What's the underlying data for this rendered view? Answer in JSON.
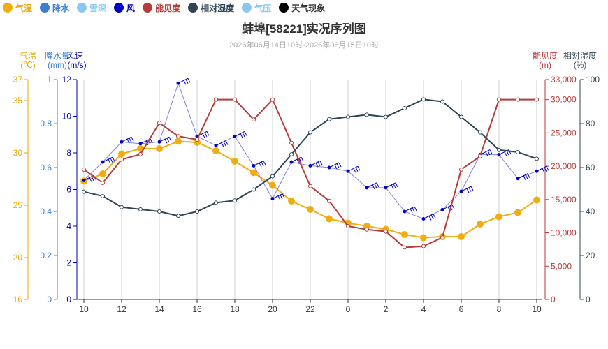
{
  "legend": [
    {
      "label": "气温",
      "color": "#f0ad12"
    },
    {
      "label": "降水",
      "color": "#3a7fd0"
    },
    {
      "label": "雪深",
      "color": "#8ac8f0"
    },
    {
      "label": "风",
      "color": "#0000cc"
    },
    {
      "label": "能见度",
      "color": "#b83a3a"
    },
    {
      "label": "相对湿度",
      "color": "#2f4554"
    },
    {
      "label": "气压",
      "color": "#8ac8f0"
    },
    {
      "label": "天气现象",
      "color": "#000000"
    }
  ],
  "chart_data": {
    "type": "line",
    "title": "蚌埠[58221]实况序列图",
    "subtitle": "2026年06月14日10时-2026年06月15日10时",
    "x": [
      "10",
      "11",
      "12",
      "13",
      "14",
      "15",
      "16",
      "17",
      "18",
      "19",
      "20",
      "21",
      "22",
      "23",
      "0",
      "1",
      "2",
      "3",
      "4",
      "5",
      "6",
      "7",
      "8",
      "9",
      "10"
    ],
    "x_ticks": [
      "10",
      "12",
      "14",
      "16",
      "18",
      "20",
      "22",
      "0",
      "2",
      "4",
      "6",
      "8",
      "10"
    ],
    "axes": {
      "temperature": {
        "label": "气温",
        "unit": "(℃)",
        "range": [
          16,
          37
        ],
        "ticks": [
          16,
          20,
          25,
          30,
          35,
          37
        ],
        "color": "#e8a800"
      },
      "precipitation": {
        "label": "降水量",
        "unit": "(mm)",
        "range": [
          0,
          1
        ],
        "ticks": [
          0,
          0.2,
          0.4,
          0.6,
          0.8,
          1
        ],
        "color": "#3a7fd0"
      },
      "wind_speed": {
        "label": "风速",
        "unit": "(m/s)",
        "range": [
          0,
          12
        ],
        "ticks": [
          0,
          2,
          4,
          6,
          8,
          10,
          12
        ],
        "color": "#0000aa"
      },
      "visibility": {
        "label": "能见度",
        "unit": "(m)",
        "range": [
          0,
          33000
        ],
        "ticks": [
          0,
          5000,
          10000,
          15000,
          20000,
          25000,
          30000,
          33000
        ],
        "tick_labels": [
          "0",
          "5,000",
          "10,000",
          "15,000",
          "20,000",
          "25,000",
          "30,000",
          "33,000"
        ],
        "color": "#b83a3a"
      },
      "humidity": {
        "label": "相对湿度",
        "unit": "(%)",
        "range": [
          0,
          100
        ],
        "ticks": [
          0,
          20,
          40,
          60,
          80,
          100
        ],
        "color": "#2f4554"
      }
    },
    "series": [
      {
        "name": "气温",
        "axis": "temperature",
        "color": "#f0ad12",
        "values": [
          27.3,
          28.0,
          29.9,
          30.4,
          30.4,
          31.1,
          31.0,
          30.2,
          29.2,
          28.1,
          26.9,
          25.4,
          24.6,
          23.7,
          23.3,
          23.0,
          22.7,
          22.2,
          21.9,
          22.0,
          22.0,
          23.2,
          23.9,
          24.3,
          25.5
        ]
      },
      {
        "name": "风",
        "axis": "wind_speed",
        "color": "#0000cc",
        "values": [
          6.5,
          7.5,
          8.6,
          8.5,
          8.6,
          11.8,
          8.9,
          8.4,
          8.9,
          7.3,
          5.5,
          7.5,
          7.3,
          7.2,
          7.0,
          6.1,
          6.1,
          4.8,
          4.4,
          4.9,
          5.9,
          7.9,
          7.9,
          6.6,
          7.0
        ]
      },
      {
        "name": "能见度",
        "axis": "visibility",
        "color": "#b83a3a",
        "values": [
          19500,
          17500,
          21000,
          21800,
          26500,
          24500,
          24000,
          30000,
          30000,
          27000,
          30000,
          23500,
          17000,
          14800,
          11000,
          10500,
          10200,
          7800,
          8000,
          9300,
          19500,
          21500,
          30000,
          30000,
          30000
        ]
      },
      {
        "name": "相对湿度",
        "axis": "humidity",
        "color": "#2f4554",
        "values": [
          49,
          47,
          42,
          41,
          40,
          38,
          40,
          44,
          45,
          50,
          56,
          66,
          76,
          82,
          83,
          84,
          83,
          87,
          91,
          90,
          83,
          76,
          68,
          67,
          64
        ]
      }
    ],
    "grid": "vertical"
  }
}
